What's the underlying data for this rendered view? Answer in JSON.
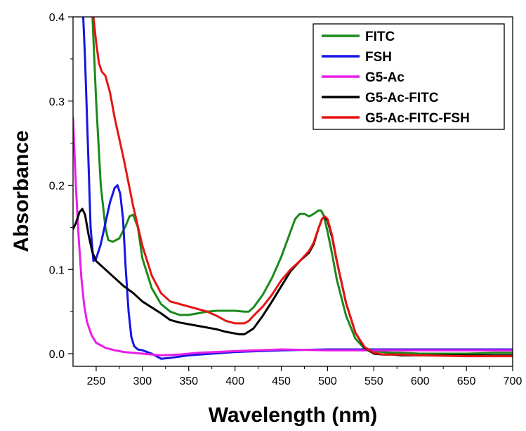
{
  "chart_data": {
    "type": "line",
    "xlabel": "Wavelength (nm)",
    "ylabel": "Absorbance",
    "xlim": [
      225,
      700
    ],
    "ylim": [
      -0.015,
      0.4
    ],
    "xticks": [
      250,
      300,
      350,
      400,
      450,
      500,
      550,
      600,
      650,
      700
    ],
    "yticks": [
      0.0,
      0.1,
      0.2,
      0.3,
      0.4
    ],
    "ytick_labels": [
      "0.0",
      "0.1",
      "0.2",
      "0.3",
      "0.4"
    ],
    "grid": false,
    "legend_position": "top-right",
    "series": [
      {
        "name": "FITC",
        "color": "#1a8a1a",
        "x": [
          246,
          250,
          255,
          260,
          263,
          268,
          275,
          282,
          286,
          290,
          295,
          300,
          310,
          320,
          330,
          340,
          350,
          360,
          370,
          380,
          390,
          400,
          410,
          415,
          420,
          430,
          440,
          450,
          460,
          465,
          470,
          475,
          480,
          485,
          490,
          493,
          496,
          500,
          505,
          510,
          520,
          530,
          540,
          550,
          560,
          570,
          580,
          600,
          620,
          650,
          680,
          700
        ],
        "y": [
          0.4,
          0.3,
          0.2,
          0.15,
          0.135,
          0.133,
          0.137,
          0.152,
          0.163,
          0.165,
          0.15,
          0.113,
          0.078,
          0.059,
          0.05,
          0.046,
          0.046,
          0.048,
          0.05,
          0.051,
          0.051,
          0.051,
          0.05,
          0.05,
          0.055,
          0.07,
          0.09,
          0.115,
          0.145,
          0.16,
          0.166,
          0.166,
          0.163,
          0.166,
          0.17,
          0.17,
          0.164,
          0.145,
          0.118,
          0.088,
          0.045,
          0.018,
          0.006,
          0.003,
          0.002,
          0.001,
          0.001,
          0.0,
          0.0,
          0.0,
          0.001,
          0.001
        ]
      },
      {
        "name": "FSH",
        "color": "#1515e6",
        "x": [
          236,
          238,
          241,
          244,
          247,
          250,
          255,
          260,
          265,
          270,
          273,
          276,
          279,
          282,
          285,
          288,
          291,
          295,
          300,
          310,
          320,
          330,
          350,
          400,
          450,
          500,
          550,
          600,
          650,
          700
        ],
        "y": [
          0.4,
          0.35,
          0.25,
          0.15,
          0.11,
          0.113,
          0.13,
          0.155,
          0.18,
          0.197,
          0.2,
          0.19,
          0.16,
          0.1,
          0.05,
          0.02,
          0.009,
          0.005,
          0.004,
          0.0,
          -0.006,
          -0.005,
          -0.002,
          0.002,
          0.004,
          0.005,
          0.005,
          0.005,
          0.005,
          0.005
        ]
      },
      {
        "name": "G5-Ac",
        "color": "#e81ee8",
        "x": [
          225,
          228,
          231,
          234,
          237,
          240,
          245,
          250,
          260,
          270,
          280,
          300,
          320,
          340,
          360,
          400,
          450,
          500,
          550,
          600,
          650,
          700
        ],
        "y": [
          0.28,
          0.2,
          0.14,
          0.09,
          0.058,
          0.038,
          0.022,
          0.013,
          0.007,
          0.004,
          0.002,
          0.0,
          -0.002,
          -0.001,
          0.001,
          0.003,
          0.005,
          0.004,
          0.004,
          0.004,
          0.004,
          0.004
        ]
      },
      {
        "name": "G5-Ac-FITC",
        "color": "#000000",
        "x": [
          225,
          228,
          232,
          235,
          238,
          242,
          246,
          250,
          260,
          270,
          280,
          290,
          300,
          310,
          320,
          330,
          340,
          350,
          360,
          370,
          380,
          390,
          400,
          405,
          410,
          413,
          420,
          430,
          440,
          450,
          460,
          470,
          480,
          485,
          490,
          494,
          497,
          500,
          505,
          510,
          520,
          530,
          540,
          550,
          560,
          570,
          580,
          600,
          650,
          700
        ],
        "y": [
          0.148,
          0.155,
          0.168,
          0.172,
          0.165,
          0.14,
          0.12,
          0.11,
          0.1,
          0.09,
          0.08,
          0.072,
          0.062,
          0.055,
          0.048,
          0.04,
          0.037,
          0.035,
          0.033,
          0.031,
          0.029,
          0.026,
          0.024,
          0.023,
          0.023,
          0.025,
          0.03,
          0.045,
          0.062,
          0.08,
          0.098,
          0.11,
          0.12,
          0.13,
          0.148,
          0.16,
          0.162,
          0.158,
          0.138,
          0.11,
          0.06,
          0.025,
          0.007,
          0.0,
          -0.001,
          -0.001,
          -0.002,
          -0.002,
          -0.002,
          -0.002
        ]
      },
      {
        "name": "G5-Ac-FITC-FSH",
        "color": "#e61414",
        "x": [
          247,
          250,
          253,
          256,
          260,
          265,
          270,
          280,
          290,
          300,
          310,
          320,
          330,
          340,
          350,
          360,
          370,
          380,
          390,
          400,
          410,
          415,
          420,
          430,
          440,
          450,
          460,
          470,
          480,
          485,
          490,
          494,
          497,
          500,
          505,
          510,
          520,
          530,
          540,
          550,
          560,
          570,
          580,
          600,
          650,
          700
        ],
        "y": [
          0.4,
          0.37,
          0.345,
          0.335,
          0.33,
          0.31,
          0.28,
          0.23,
          0.175,
          0.128,
          0.093,
          0.072,
          0.062,
          0.059,
          0.056,
          0.053,
          0.05,
          0.045,
          0.039,
          0.036,
          0.036,
          0.039,
          0.045,
          0.056,
          0.07,
          0.087,
          0.1,
          0.11,
          0.122,
          0.132,
          0.148,
          0.16,
          0.163,
          0.16,
          0.14,
          0.11,
          0.06,
          0.025,
          0.008,
          0.001,
          -0.001,
          -0.001,
          -0.001,
          -0.002,
          -0.003,
          -0.003
        ]
      }
    ]
  }
}
